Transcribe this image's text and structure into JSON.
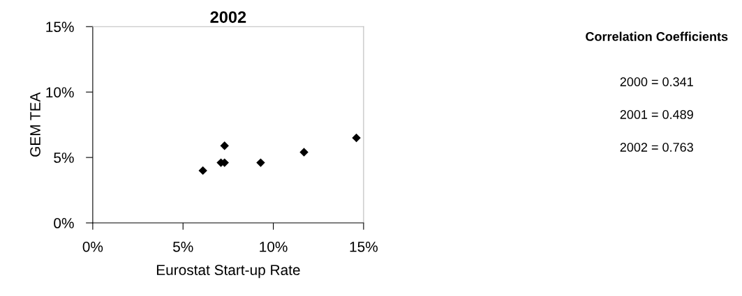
{
  "chart_data": {
    "type": "scatter",
    "title": "2002",
    "xlabel": "Eurostat Start-up Rate",
    "ylabel": "GEM TEA",
    "x": [
      6.1,
      7.1,
      7.3,
      7.3,
      9.3,
      11.7,
      14.6
    ],
    "values": [
      4.0,
      4.6,
      4.6,
      5.9,
      4.6,
      5.4,
      6.5
    ],
    "color": "#000000",
    "marker": "diamond",
    "xlim": [
      0,
      15
    ],
    "ylim": [
      0,
      15
    ],
    "xticks": [
      {
        "value": 0,
        "label": "0%"
      },
      {
        "value": 5,
        "label": "5%"
      },
      {
        "value": 10,
        "label": "10%"
      },
      {
        "value": 15,
        "label": "15%"
      }
    ],
    "yticks": [
      {
        "value": 0,
        "label": "0%"
      },
      {
        "value": 5,
        "label": "5%"
      },
      {
        "value": 10,
        "label": "10%"
      },
      {
        "value": 15,
        "label": "15%"
      }
    ],
    "grid": false,
    "legend": false,
    "annotations": [
      "Correlation Coefficients",
      "2000 = 0.341",
      "2001 = 0.489",
      "2002 = 0.763"
    ]
  }
}
